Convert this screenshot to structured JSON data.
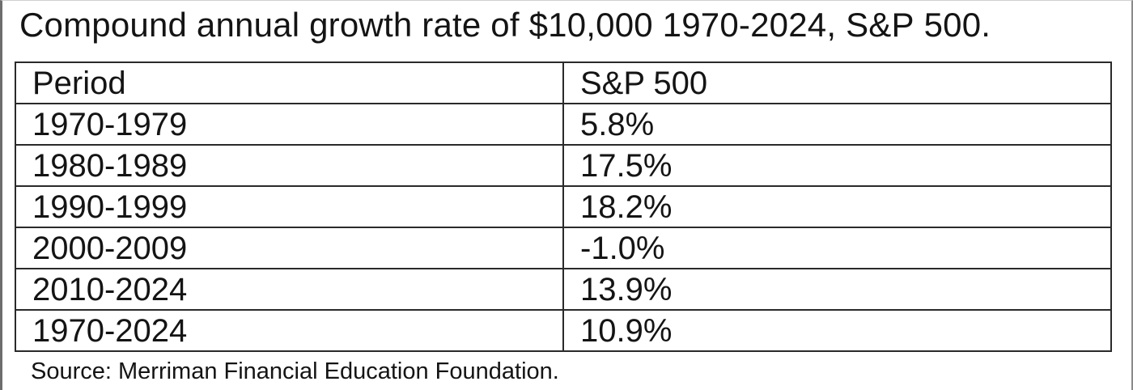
{
  "title": "Compound annual growth rate of $10,000 1970-2024, S&P 500.",
  "chart_data": {
    "type": "table",
    "title": "Compound annual growth rate of $10,000 1970-2024, S&P 500.",
    "columns": [
      "Period",
      "S&P 500"
    ],
    "rows": [
      [
        "1970-1979",
        "5.8%"
      ],
      [
        "1980-1989",
        "17.5%"
      ],
      [
        "1990-1999",
        "18.2%"
      ],
      [
        "2000-2009",
        "-1.0%"
      ],
      [
        "2010-2024",
        "13.9%"
      ],
      [
        "1970-2024",
        "10.9%"
      ]
    ],
    "values": [
      5.8,
      17.5,
      18.2,
      -1.0,
      13.9,
      10.9
    ],
    "categories": [
      "1970-1979",
      "1980-1989",
      "1990-1999",
      "2000-2009",
      "2010-2024",
      "1970-2024"
    ]
  },
  "source": "Source: Merriman Financial Education Foundation."
}
